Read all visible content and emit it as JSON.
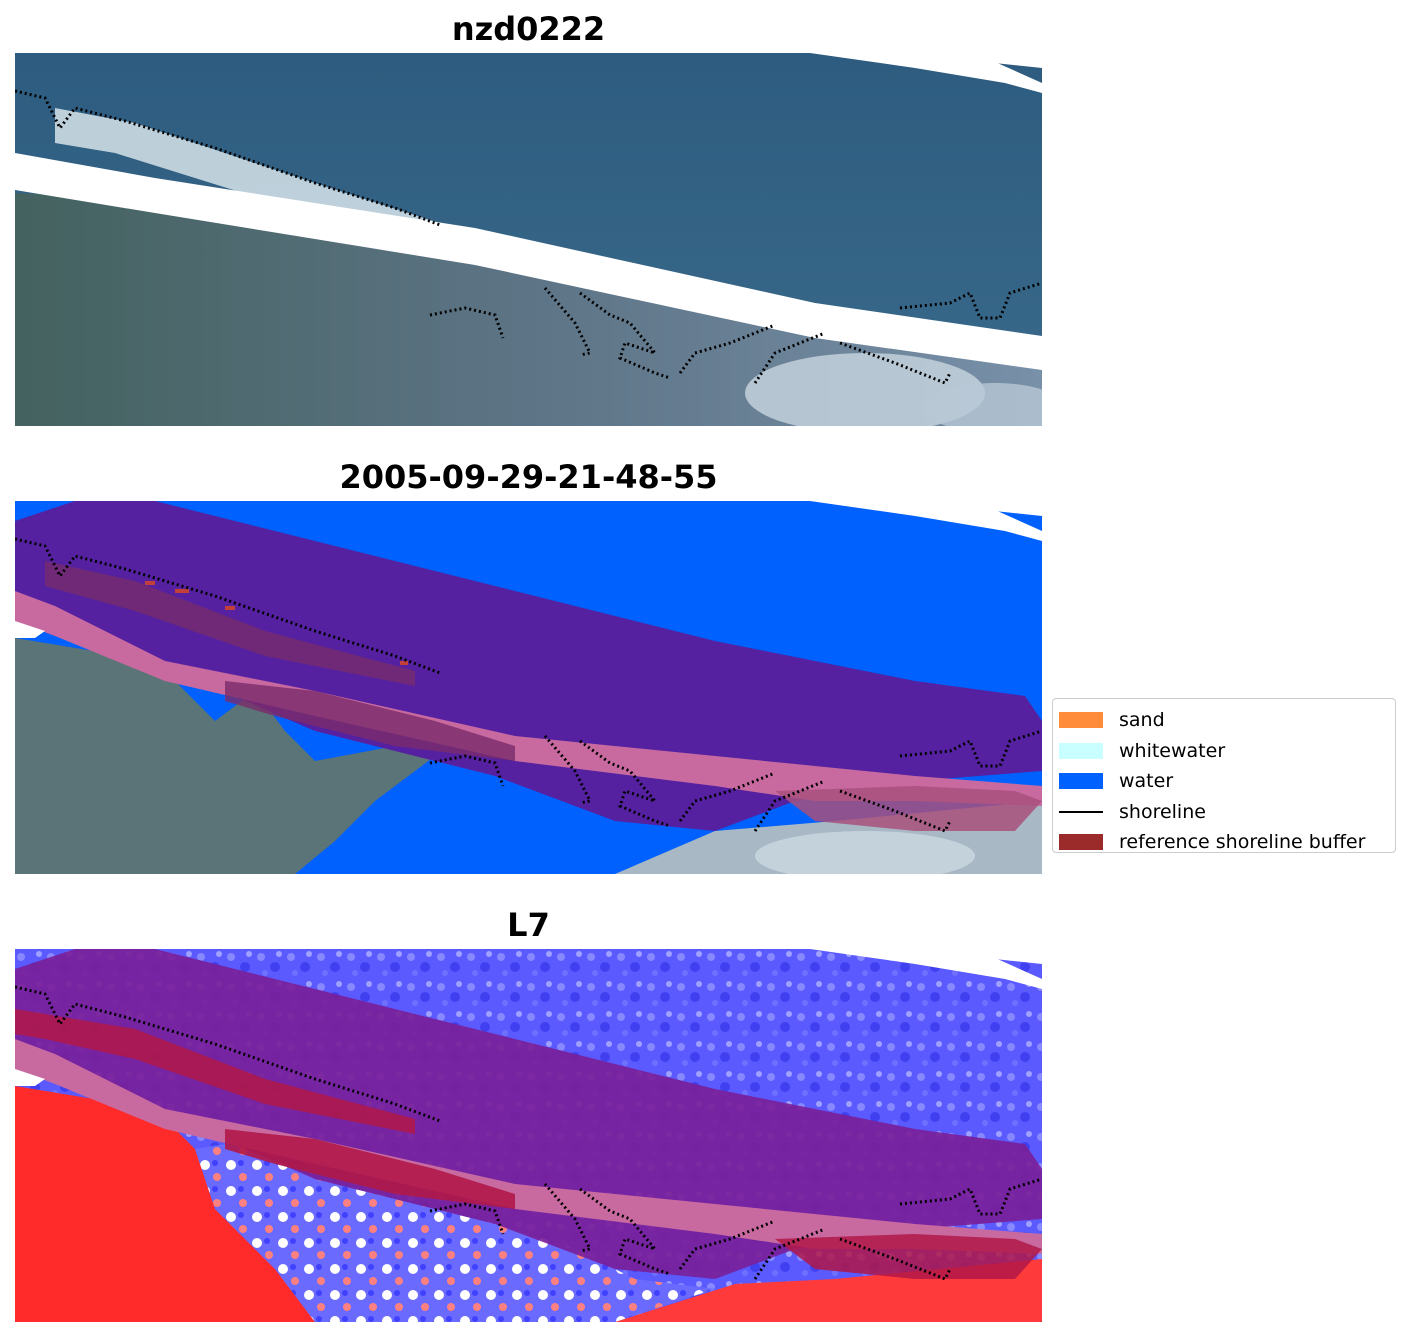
{
  "panels": [
    {
      "title": "nzd0222"
    },
    {
      "title": "2005-09-29-21-48-55"
    },
    {
      "title": "L7"
    }
  ],
  "legend": {
    "items": [
      {
        "label": "sand",
        "color": "#ff8c3b",
        "kind": "patch"
      },
      {
        "label": "whitewater",
        "color": "#c9ffff",
        "kind": "patch"
      },
      {
        "label": "water",
        "color": "#0061ff",
        "kind": "patch"
      },
      {
        "label": "shoreline",
        "color": "#000000",
        "kind": "line"
      },
      {
        "label": "reference shoreline buffer",
        "color": "#9b2a2a",
        "kind": "patch"
      }
    ]
  },
  "colors": {
    "sea": "#2f5b7f",
    "land": "#4e6c6e",
    "water_class": "#0061ff",
    "buffer_overlay": "#7a1f9a",
    "buffer_pink": "#c86aa0",
    "mndwi_land": "#ff2a2a",
    "mndwi_water": "#5a5aff"
  }
}
